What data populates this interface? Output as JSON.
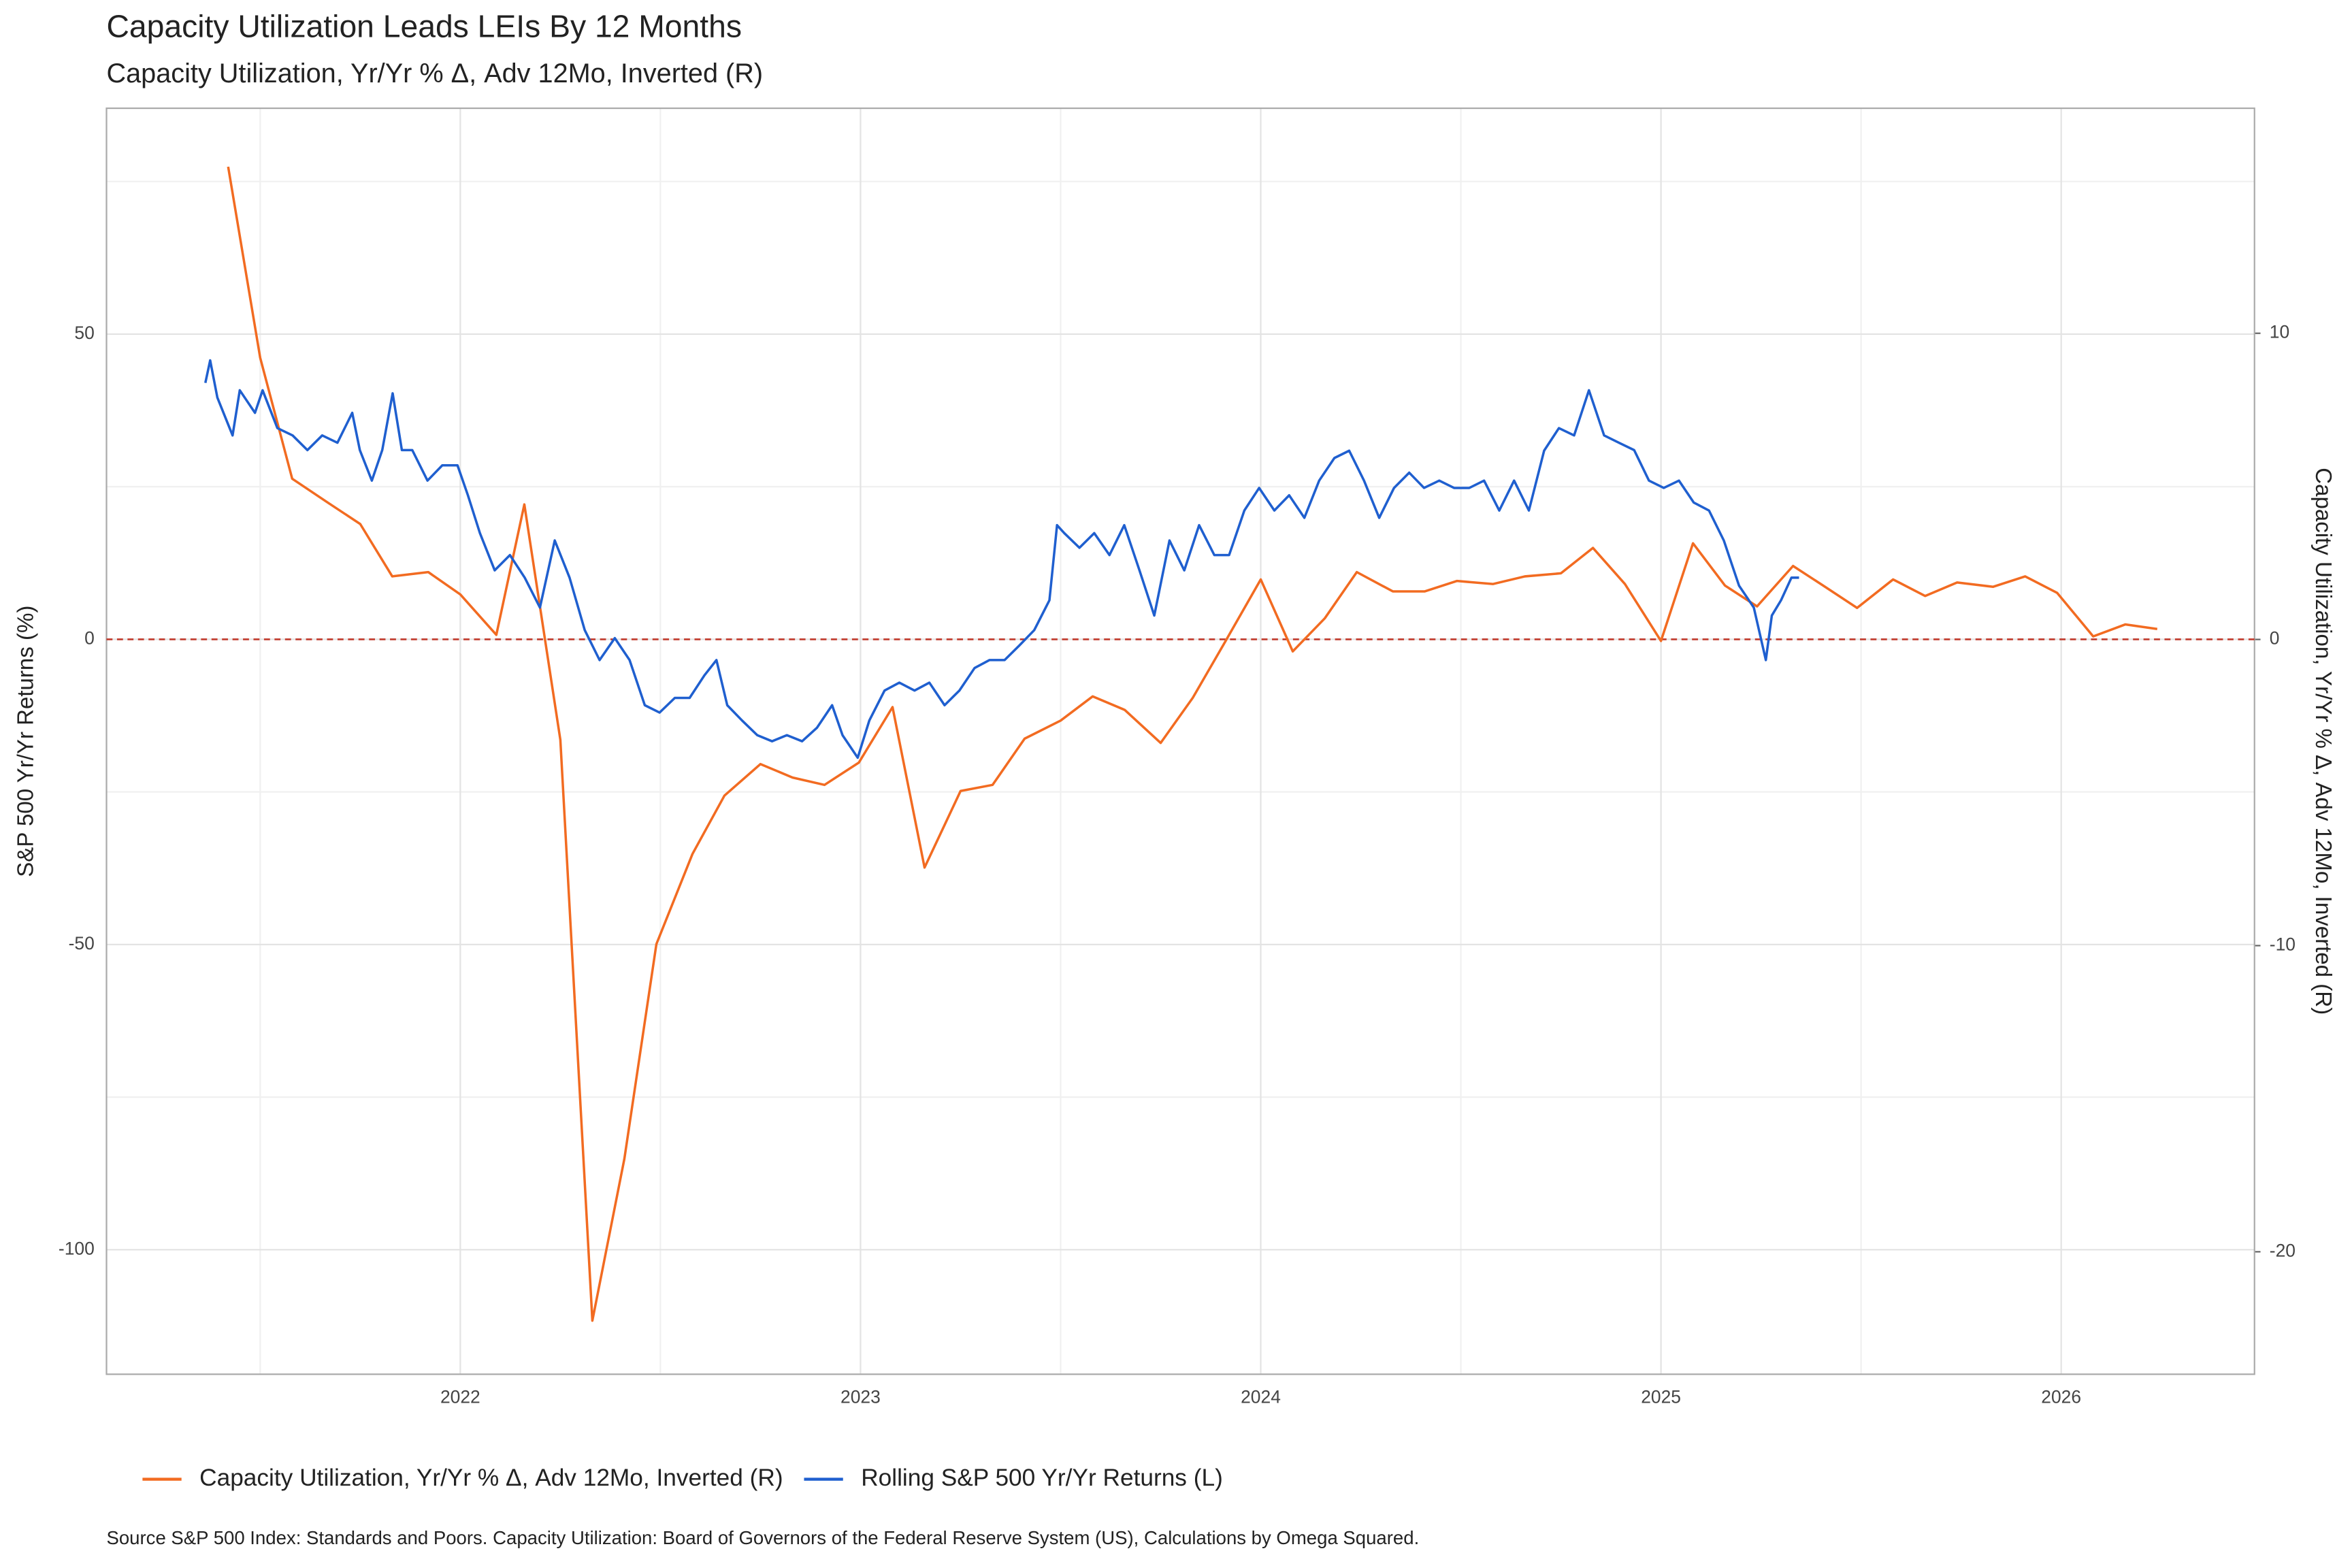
{
  "chart_data": {
    "type": "line",
    "title": "Capacity Utilization  Leads LEIs By  12  Months",
    "subtitle": "Capacity Utilization, Yr/Yr % Δ, Adv 12Mo, Inverted (R)",
    "y_label": "S&P 500 Yr/Yr Returns (%)",
    "y2_label": "Capacity Utilization, Yr/Yr % Δ, Adv 12Mo, Inverted (R)",
    "source": "Source S&P 500 Index: Standards and Poors. Capacity Utilization: Board of Governors of the Federal Reserve System (US), Calculations by Omega Squared.",
    "xlim": [
      2021.116,
      2026.483
    ],
    "xticks": [
      2022,
      2023,
      2024,
      2025,
      2026
    ],
    "ylim": [
      -120.4,
      87.0
    ],
    "yticks": [
      -100,
      -50,
      0,
      50
    ],
    "y2lim": [
      -24.0,
      17.35
    ],
    "y2ticks": [
      -20,
      -10,
      0,
      10
    ],
    "grid": true,
    "hline": 0,
    "legend": "bottom",
    "series": [
      {
        "name": "Capacity Utilization, Yr/Yr % Δ, Adv 12Mo, Inverted (R)",
        "color": "#f26b21",
        "axis": "y2",
        "x": [
          2021.42,
          2021.5,
          2021.58,
          2021.67,
          2021.75,
          2021.83,
          2021.92,
          2022.0,
          2022.09,
          2022.16,
          2022.25,
          2022.33,
          2022.41,
          2022.49,
          2022.58,
          2022.66,
          2022.75,
          2022.83,
          2022.91,
          2022.996,
          2023.08,
          2023.16,
          2023.25,
          2023.33,
          2023.41,
          2023.5,
          2023.58,
          2023.66,
          2023.75,
          2023.83,
          2023.91,
          2024.0,
          2024.08,
          2024.16,
          2024.24,
          2024.33,
          2024.41,
          2024.49,
          2024.58,
          2024.66,
          2024.75,
          2024.83,
          2024.91,
          2025.0,
          2025.08,
          2025.16,
          2025.24,
          2025.33,
          2025.41,
          2025.49,
          2025.58,
          2025.66,
          2025.74,
          2025.83,
          2025.91,
          2025.99,
          2026.08,
          2026.16,
          2026.24
        ],
        "values": [
          15.44,
          9.2,
          5.25,
          4.46,
          3.77,
          2.06,
          2.2,
          1.47,
          0.15,
          4.41,
          -3.28,
          -22.25,
          -16.96,
          -9.95,
          -7.01,
          -5.1,
          -4.07,
          -4.51,
          -4.75,
          -4.02,
          -2.21,
          -7.45,
          -4.95,
          -4.75,
          -3.24,
          -2.65,
          -1.86,
          -2.3,
          -3.38,
          -1.91,
          -0.1,
          1.96,
          -0.39,
          0.69,
          2.2,
          1.57,
          1.57,
          1.91,
          1.81,
          2.06,
          2.16,
          2.99,
          1.81,
          -0.05,
          3.14,
          1.76,
          1.08,
          2.4,
          1.72,
          1.03,
          1.96,
          1.42,
          1.86,
          1.72,
          2.06,
          1.52,
          0.1,
          0.49,
          0.34
        ]
      },
      {
        "name": "Rolling S&P 500 Yr/Yr Returns (L)",
        "color": "#1f5fcf",
        "axis": "y",
        "x": [
          2021.363,
          2021.375,
          2021.393,
          2021.431,
          2021.449,
          2021.487,
          2021.506,
          2021.543,
          2021.581,
          2021.618,
          2021.655,
          2021.693,
          2021.73,
          2021.749,
          2021.779,
          2021.805,
          2021.831,
          2021.854,
          2021.88,
          2021.918,
          2021.955,
          2021.993,
          2022.019,
          2022.049,
          2022.086,
          2022.124,
          2022.161,
          2022.199,
          2022.236,
          2022.273,
          2022.311,
          2022.348,
          2022.386,
          2022.423,
          2022.461,
          2022.498,
          2022.536,
          2022.573,
          2022.61,
          2022.64,
          2022.667,
          2022.704,
          2022.742,
          2022.779,
          2022.816,
          2022.854,
          2022.891,
          2022.929,
          2022.955,
          2022.993,
          2023.022,
          2023.06,
          2023.097,
          2023.135,
          2023.172,
          2023.21,
          2023.247,
          2023.285,
          2023.322,
          2023.36,
          2023.397,
          2023.434,
          2023.472,
          2023.491,
          2023.509,
          2023.547,
          2023.584,
          2023.622,
          2023.659,
          2023.697,
          2023.734,
          2023.772,
          2023.809,
          2023.846,
          2023.884,
          2023.921,
          2023.959,
          2023.996,
          2024.034,
          2024.071,
          2024.109,
          2024.146,
          2024.184,
          2024.221,
          2024.258,
          2024.296,
          2024.333,
          2024.371,
          2024.408,
          2024.446,
          2024.483,
          2024.521,
          2024.558,
          2024.596,
          2024.633,
          2024.67,
          2024.708,
          2024.745,
          2024.783,
          2024.82,
          2024.858,
          2024.895,
          2024.933,
          2024.97,
          2025.007,
          2025.045,
          2025.082,
          2025.12,
          2025.157,
          2025.195,
          2025.232,
          2025.262,
          2025.277,
          2025.3,
          2025.326,
          2025.345
        ],
        "values": [
          42.0,
          45.7,
          39.6,
          33.4,
          40.8,
          37.1,
          40.8,
          34.6,
          33.4,
          31.0,
          33.4,
          32.2,
          37.1,
          31.0,
          26.0,
          31.0,
          40.3,
          31.0,
          31.0,
          26.0,
          28.5,
          28.5,
          23.6,
          17.4,
          11.3,
          13.8,
          10.1,
          5.2,
          16.2,
          10.1,
          1.5,
          -3.4,
          0.2,
          -3.4,
          -10.8,
          -12.0,
          -9.6,
          -9.6,
          -5.9,
          -3.4,
          -10.8,
          -13.3,
          -15.7,
          -16.7,
          -15.7,
          -16.7,
          -14.5,
          -10.8,
          -15.7,
          -19.4,
          -13.3,
          -8.4,
          -7.1,
          -8.4,
          -7.1,
          -10.8,
          -8.4,
          -4.7,
          -3.4,
          -3.4,
          -1.0,
          1.5,
          6.4,
          18.7,
          17.4,
          15.0,
          17.4,
          13.8,
          18.7,
          11.3,
          3.9,
          16.2,
          11.3,
          18.7,
          13.8,
          13.8,
          21.1,
          24.8,
          21.1,
          23.6,
          19.9,
          26.0,
          29.7,
          30.9,
          26.0,
          19.9,
          24.8,
          27.3,
          24.8,
          26.0,
          24.8,
          24.8,
          26.0,
          21.1,
          26.0,
          21.1,
          30.9,
          34.6,
          33.4,
          40.8,
          33.4,
          32.2,
          31.0,
          26.0,
          24.8,
          26.0,
          22.4,
          21.1,
          16.2,
          8.8,
          5.2,
          -3.4,
          3.9,
          6.4,
          10.1,
          10.1
        ]
      }
    ]
  }
}
